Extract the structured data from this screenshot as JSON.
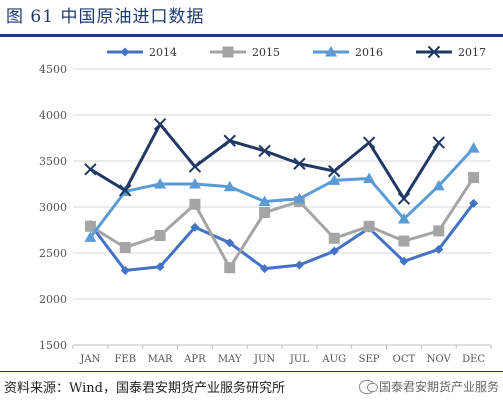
{
  "figure": {
    "title": "图 61 中国原油进口数据",
    "source": "资料来源：Wind，国泰君安期货产业服务研究所",
    "watermark": "国泰君安期货产业服务"
  },
  "chart_data": {
    "type": "line",
    "title": "",
    "xlabel": "",
    "ylabel": "",
    "categories": [
      "JAN",
      "FEB",
      "MAR",
      "APR",
      "MAY",
      "JUN",
      "JUL",
      "AUG",
      "SEP",
      "OCT",
      "NOV",
      "DEC"
    ],
    "ylim": [
      1500,
      4500
    ],
    "yticks": [
      1500,
      2000,
      2500,
      3000,
      3500,
      4000,
      4500
    ],
    "grid": "horizontal",
    "legend_position": "top",
    "series": [
      {
        "name": "2014",
        "color": "#4472c4",
        "marker": "diamond",
        "values": [
          2810,
          2310,
          2350,
          2780,
          2610,
          2330,
          2370,
          2520,
          2770,
          2410,
          2540,
          3040
        ]
      },
      {
        "name": "2015",
        "color": "#a5a5a5",
        "marker": "square",
        "values": [
          2790,
          2560,
          2690,
          3030,
          2340,
          2940,
          3060,
          2660,
          2790,
          2630,
          2740,
          3320
        ]
      },
      {
        "name": "2016",
        "color": "#5b9bd5",
        "marker": "triangle",
        "values": [
          2670,
          3170,
          3250,
          3250,
          3220,
          3060,
          3090,
          3290,
          3310,
          2870,
          3230,
          3640
        ]
      },
      {
        "name": "2017",
        "color": "#203864",
        "marker": "x",
        "values": [
          3410,
          3180,
          3900,
          3440,
          3720,
          3610,
          3470,
          3390,
          3700,
          3090,
          3700,
          null
        ]
      }
    ]
  }
}
